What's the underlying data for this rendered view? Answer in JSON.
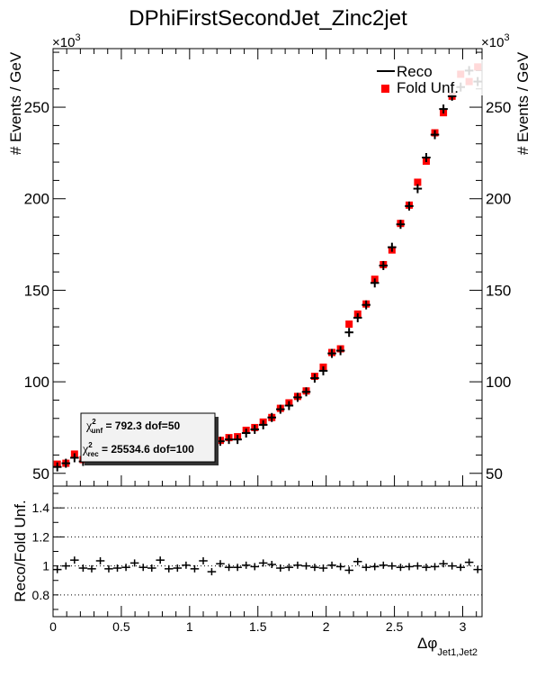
{
  "chart_data": [
    {
      "type": "scatter",
      "title": "DPhiFirstSecondJet_Zinc2jet",
      "ylabel": "# Events / GeV",
      "y_exponent_label": "×10",
      "y_exponent_power": "3",
      "xlim": [
        0,
        3.14159
      ],
      "ylim": [
        43,
        282
      ],
      "y_ticks": [
        50,
        100,
        150,
        200,
        250
      ],
      "legend": {
        "placement": "top-right",
        "entries": [
          "Reco",
          "Fold Unf."
        ]
      },
      "stats": {
        "chi_unf_symbol": "χ",
        "chi_unf_sup": "2",
        "chi_unf_sub": "unf",
        "chi_unf_text": " =    792.3  dof=50",
        "chi_rec_symbol": "χ",
        "chi_rec_sup": "2",
        "chi_rec_sub": "rec",
        "chi_rec_text": " =  25534.6  dof=100"
      },
      "x": [
        0.031,
        0.094,
        0.157,
        0.22,
        0.283,
        0.346,
        0.408,
        0.471,
        0.534,
        0.597,
        0.66,
        0.723,
        0.785,
        0.848,
        0.911,
        0.974,
        1.037,
        1.1,
        1.162,
        1.225,
        1.288,
        1.351,
        1.414,
        1.477,
        1.539,
        1.602,
        1.665,
        1.728,
        1.791,
        1.854,
        1.916,
        1.979,
        2.042,
        2.105,
        2.168,
        2.231,
        2.293,
        2.356,
        2.419,
        2.482,
        2.545,
        2.608,
        2.67,
        2.733,
        2.796,
        2.859,
        2.922,
        2.985,
        3.047,
        3.11
      ],
      "series": [
        {
          "name": "Reco",
          "color": "#000000",
          "values": [
            53.5,
            55.5,
            58.5,
            56.5,
            58.5,
            59.5,
            61.5,
            64.5,
            68,
            66,
            63,
            64,
            62.5,
            61,
            61,
            62,
            63,
            64,
            65.5,
            67.5,
            68.5,
            68.5,
            72,
            74,
            76.5,
            80.5,
            85,
            87,
            91.5,
            94.5,
            102,
            106,
            115.5,
            117,
            127,
            135,
            142,
            154,
            163.5,
            173.5,
            186,
            196,
            205.5,
            222.5,
            235,
            249,
            256,
            261,
            270,
            264
          ]
        },
        {
          "name": "Fold Unf.",
          "color": "#ff0000",
          "values": [
            55,
            55.5,
            60.5,
            57.5,
            61.5,
            59.5,
            62,
            66,
            69.5,
            67,
            64,
            65.5,
            63,
            62.5,
            62,
            63,
            64.5,
            65,
            66.5,
            68,
            69.5,
            70,
            73.5,
            75,
            78,
            80.5,
            85.5,
            88.5,
            92,
            95,
            103,
            108,
            116,
            118,
            131.5,
            137,
            142.5,
            156,
            164,
            172,
            186.5,
            196.5,
            209,
            220.5,
            236,
            247,
            256,
            268,
            264,
            272
          ]
        }
      ]
    },
    {
      "type": "scatter",
      "ylabel": "Reco/Fold Unf.",
      "xlabel_main": "Δφ",
      "xlabel_sub": "Jet1,Jet2",
      "xlim": [
        0,
        3.14159
      ],
      "ylim": [
        0.65,
        1.55
      ],
      "x_ticks": [
        0,
        0.5,
        1,
        1.5,
        2,
        2.5,
        3
      ],
      "x_tick_labels": [
        "0",
        "0.5",
        "1",
        "1.5",
        "2",
        "2.5",
        "3"
      ],
      "y_ticks": [
        0.8,
        1,
        1.2,
        1.4
      ],
      "y_tick_labels": [
        "0.8",
        "1",
        "1.2",
        "1.4"
      ],
      "grid": "dotted horizontal at ticks",
      "values": [
        0.975,
        1.0,
        1.04,
        0.985,
        0.98,
        1.035,
        0.98,
        0.985,
        0.99,
        1.02,
        0.99,
        0.985,
        1.04,
        0.98,
        0.985,
        1.005,
        0.98,
        1.035,
        0.96,
        1.015,
        0.99,
        0.99,
        1.005,
        0.995,
        1.02,
        1.01,
        0.985,
        0.99,
        1.005,
        1.0,
        0.99,
        0.985,
        1.005,
        0.995,
        0.97,
        1.03,
        0.99,
        0.995,
        1.005,
        1.0,
        0.99,
        0.995,
        1.0,
        0.99,
        0.995,
        1.015,
        1.0,
        0.99,
        1.025,
        0.975
      ]
    }
  ]
}
